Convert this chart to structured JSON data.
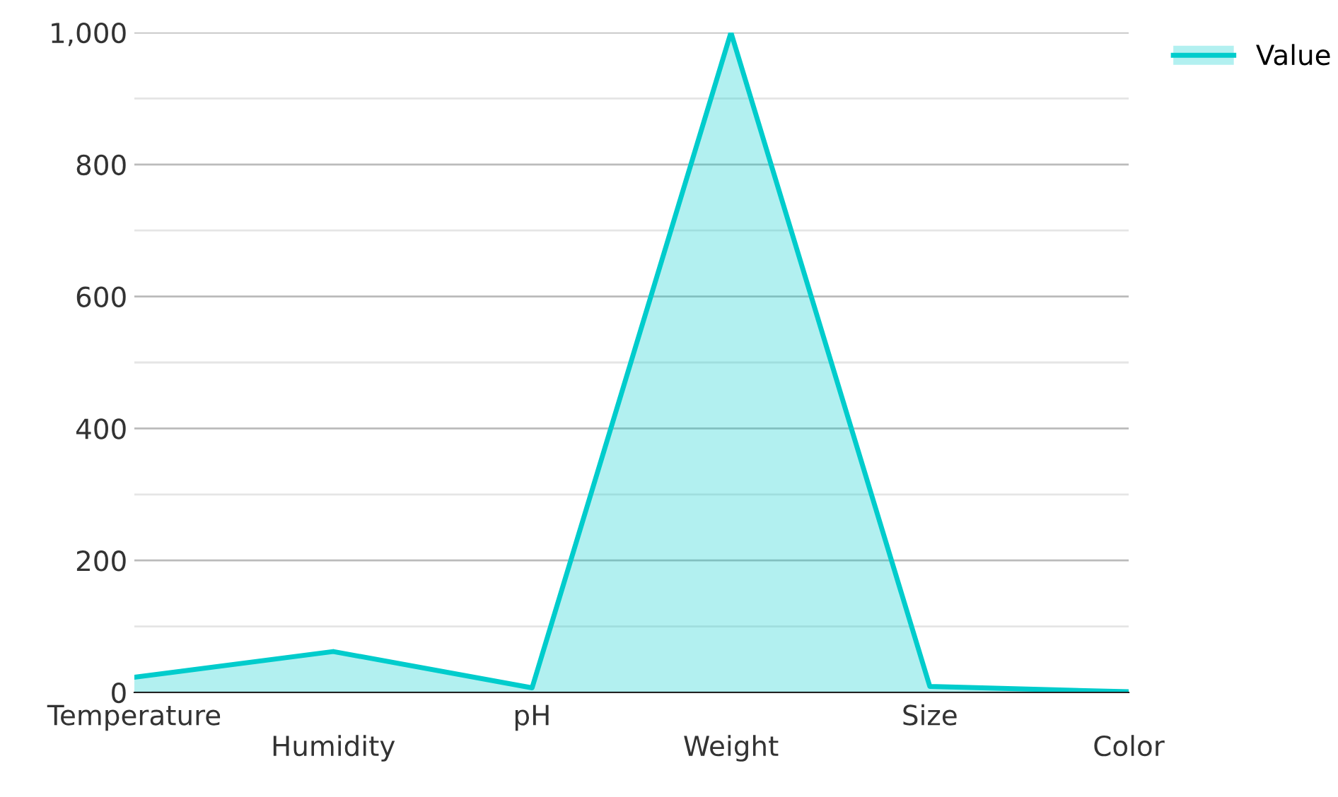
{
  "chart_data": {
    "type": "area",
    "categories": [
      "Temperature",
      "Humidity",
      "pH",
      "Weight",
      "Size",
      "Color"
    ],
    "series": [
      {
        "name": "Value",
        "color": "#00cccc",
        "values": [
          23,
          62,
          7,
          1000,
          9,
          1
        ]
      }
    ],
    "ylim": [
      0,
      1000
    ],
    "yticks": [
      {
        "value": 0,
        "label": "0"
      },
      {
        "value": 100,
        "label": null
      },
      {
        "value": 200,
        "label": "200"
      },
      {
        "value": 300,
        "label": null
      },
      {
        "value": 400,
        "label": "400"
      },
      {
        "value": 500,
        "label": null
      },
      {
        "value": 600,
        "label": "600"
      },
      {
        "value": 700,
        "label": null
      },
      {
        "value": 800,
        "label": "800"
      },
      {
        "value": 900,
        "label": null
      },
      {
        "value": 1000,
        "label": "1,000"
      }
    ],
    "grid": "y",
    "legend": "top right",
    "marker": "none",
    "line_style": "solid"
  }
}
